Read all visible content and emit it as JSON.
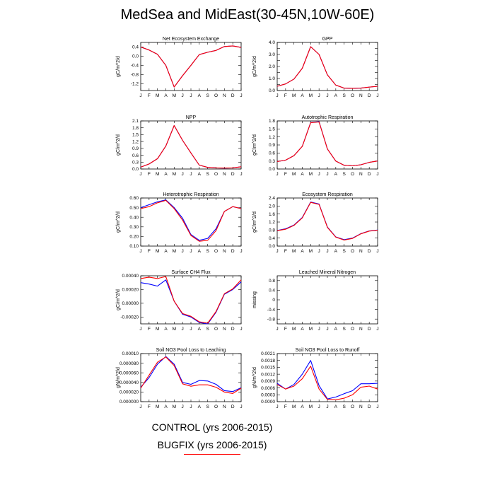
{
  "title": "MedSea and MidEast(30-45N,10W-60E)",
  "legend": [
    {
      "label": "CONTROL (yrs 2006-2015)",
      "color": "#0000ff"
    },
    {
      "label": "BUGFIX (yrs 2006-2015)",
      "color": "#ff0000"
    }
  ],
  "chart_data": [
    {
      "type": "line",
      "title": "Net Ecosystem Exchange",
      "ylabel": "gC/m^2/d",
      "categories": [
        "J",
        "F",
        "M",
        "A",
        "M",
        "J",
        "J",
        "A",
        "S",
        "O",
        "N",
        "D",
        "J"
      ],
      "ylim": [
        -1.5,
        0.6
      ],
      "yticks": [
        0.4,
        0.0,
        -0.4,
        -0.8,
        -1.2
      ],
      "yticklabels": [
        "0.4",
        "0.0",
        "-0.4",
        "-0.8",
        "-1.2"
      ],
      "series": [
        {
          "name": "CONTROL",
          "color": "#0000ff",
          "values": [
            0.4,
            0.27,
            0.08,
            -0.4,
            -1.35,
            -0.85,
            -0.4,
            0.07,
            0.17,
            0.25,
            0.42,
            0.45,
            0.38
          ]
        },
        {
          "name": "BUGFIX",
          "color": "#ff0000",
          "values": [
            0.4,
            0.27,
            0.08,
            -0.4,
            -1.35,
            -0.85,
            -0.4,
            0.07,
            0.17,
            0.25,
            0.42,
            0.45,
            0.38
          ]
        }
      ]
    },
    {
      "type": "line",
      "title": "GPP",
      "ylabel": "gC/m^2/d",
      "categories": [
        "J",
        "F",
        "M",
        "A",
        "M",
        "J",
        "J",
        "A",
        "S",
        "O",
        "N",
        "D",
        "J"
      ],
      "ylim": [
        0,
        4
      ],
      "yticks": [
        0,
        0.5,
        1,
        1.5,
        2,
        2.5,
        3,
        3.5,
        4
      ],
      "yticklabels": [
        "0.0",
        "",
        "1.0",
        "",
        "2.0",
        "",
        "3.0",
        "",
        "4.0"
      ],
      "series": [
        {
          "name": "CONTROL",
          "color": "#0000ff",
          "values": [
            0.35,
            0.55,
            0.95,
            1.85,
            3.65,
            3.0,
            1.3,
            0.45,
            0.2,
            0.18,
            0.2,
            0.28,
            0.35
          ]
        },
        {
          "name": "BUGFIX",
          "color": "#ff0000",
          "values": [
            0.35,
            0.55,
            0.95,
            1.85,
            3.65,
            3.0,
            1.3,
            0.45,
            0.2,
            0.18,
            0.2,
            0.28,
            0.35
          ]
        }
      ]
    },
    {
      "type": "line",
      "title": "NPP",
      "ylabel": "gC/m^2/d",
      "categories": [
        "J",
        "F",
        "M",
        "A",
        "M",
        "J",
        "J",
        "A",
        "S",
        "O",
        "N",
        "D",
        "J"
      ],
      "ylim": [
        0,
        2.1
      ],
      "yticks": [
        0,
        0.3,
        0.6,
        0.9,
        1.2,
        1.5,
        1.8,
        2.1
      ],
      "yticklabels": [
        "0.0",
        "0.3",
        "0.6",
        "0.9",
        "1.2",
        "1.5",
        "1.8",
        "2.1"
      ],
      "series": [
        {
          "name": "CONTROL",
          "color": "#0000ff",
          "values": [
            0.08,
            0.22,
            0.45,
            1.0,
            1.9,
            1.25,
            0.7,
            0.17,
            0.07,
            0.05,
            0.04,
            0.05,
            0.1
          ]
        },
        {
          "name": "BUGFIX",
          "color": "#ff0000",
          "values": [
            0.08,
            0.22,
            0.45,
            1.0,
            1.9,
            1.25,
            0.7,
            0.17,
            0.07,
            0.05,
            0.04,
            0.05,
            0.1
          ]
        }
      ]
    },
    {
      "type": "line",
      "title": "Autotrophic Respiration",
      "ylabel": "gC/m^2/d",
      "categories": [
        "J",
        "F",
        "M",
        "A",
        "M",
        "J",
        "J",
        "A",
        "S",
        "O",
        "N",
        "D",
        "J"
      ],
      "ylim": [
        0,
        1.8
      ],
      "yticks": [
        0,
        0.3,
        0.6,
        0.9,
        1.2,
        1.5,
        1.8
      ],
      "yticklabels": [
        "0.0",
        "0.3",
        "0.6",
        "0.9",
        "1.2",
        "1.5",
        "1.8"
      ],
      "series": [
        {
          "name": "CONTROL",
          "color": "#0000ff",
          "values": [
            0.28,
            0.33,
            0.5,
            0.85,
            1.74,
            1.77,
            0.75,
            0.3,
            0.14,
            0.12,
            0.16,
            0.25,
            0.3
          ]
        },
        {
          "name": "BUGFIX",
          "color": "#ff0000",
          "values": [
            0.28,
            0.33,
            0.5,
            0.85,
            1.73,
            1.76,
            0.75,
            0.3,
            0.14,
            0.12,
            0.16,
            0.25,
            0.3
          ]
        }
      ]
    },
    {
      "type": "line",
      "title": "Heterotrophic Respiration",
      "ylabel": "gC/m^2/d",
      "categories": [
        "J",
        "F",
        "M",
        "A",
        "M",
        "J",
        "J",
        "A",
        "S",
        "O",
        "N",
        "D",
        "J"
      ],
      "ylim": [
        0.1,
        0.6
      ],
      "yticks": [
        0.1,
        0.2,
        0.3,
        0.4,
        0.5,
        0.6
      ],
      "yticklabels": [
        "0.10",
        "0.20",
        "0.30",
        "0.40",
        "0.50",
        "0.60"
      ],
      "series": [
        {
          "name": "CONTROL",
          "color": "#0000ff",
          "values": [
            0.5,
            0.53,
            0.56,
            0.58,
            0.5,
            0.39,
            0.22,
            0.16,
            0.18,
            0.28,
            0.46,
            0.51,
            0.49
          ]
        },
        {
          "name": "BUGFIX",
          "color": "#ff0000",
          "values": [
            0.49,
            0.51,
            0.55,
            0.575,
            0.49,
            0.37,
            0.21,
            0.15,
            0.16,
            0.26,
            0.46,
            0.51,
            0.49
          ]
        }
      ]
    },
    {
      "type": "line",
      "title": "Ecosystem Respiration",
      "ylabel": "gC/m^2/d",
      "categories": [
        "J",
        "F",
        "M",
        "A",
        "M",
        "J",
        "J",
        "A",
        "S",
        "O",
        "N",
        "D",
        "J"
      ],
      "ylim": [
        0,
        2.4
      ],
      "yticks": [
        0,
        0.4,
        0.8,
        1.2,
        1.6,
        2.0,
        2.4
      ],
      "yticklabels": [
        "0.0",
        "0.4",
        "0.8",
        "1.2",
        "1.6",
        "2.0",
        "2.4"
      ],
      "series": [
        {
          "name": "CONTROL",
          "color": "#0000ff",
          "values": [
            0.78,
            0.86,
            1.05,
            1.43,
            2.2,
            2.1,
            0.95,
            0.46,
            0.32,
            0.4,
            0.62,
            0.76,
            0.8
          ]
        },
        {
          "name": "BUGFIX",
          "color": "#ff0000",
          "values": [
            0.77,
            0.84,
            1.03,
            1.41,
            2.18,
            2.08,
            0.93,
            0.45,
            0.3,
            0.38,
            0.61,
            0.75,
            0.79
          ]
        }
      ]
    },
    {
      "type": "line",
      "title": "Surface CH4 Flux",
      "ylabel": "gC/m^2/d",
      "categories": [
        "J",
        "F",
        "M",
        "A",
        "M",
        "J",
        "J",
        "A",
        "S",
        "O",
        "N",
        "D",
        "J"
      ],
      "ylim": [
        -0.0003,
        0.0004
      ],
      "yticks": [
        -0.0002,
        0.0,
        0.0002,
        0.0004
      ],
      "yticklabels": [
        "-0.00020",
        "0.00000",
        "0.00020",
        "0.00040"
      ],
      "series": [
        {
          "name": "CONTROL",
          "color": "#0000ff",
          "values": [
            0.0003,
            0.00028,
            0.00025,
            0.00034,
            3e-05,
            -0.00016,
            -0.0002,
            -0.00028,
            -0.0003,
            -0.00013,
            0.00013,
            0.0002,
            0.00031
          ]
        },
        {
          "name": "BUGFIX",
          "color": "#ff0000",
          "values": [
            0.00036,
            0.00038,
            0.00036,
            0.00039,
            3e-05,
            -0.00015,
            -0.00019,
            -0.00027,
            -0.00029,
            -0.00012,
            0.00014,
            0.00021,
            0.00034
          ]
        }
      ]
    },
    {
      "type": "line",
      "title": "Leached Mineral Nitrogen",
      "ylabel": "missing",
      "categories": [
        "J",
        "F",
        "M",
        "A",
        "M",
        "J",
        "J",
        "A",
        "S",
        "O",
        "N",
        "D",
        "J"
      ],
      "ylim": [
        -1,
        1
      ],
      "yticks": [
        -0.8,
        -0.4,
        0,
        0.4,
        0.8
      ],
      "yticklabels": [
        "-0.8",
        "-0.4",
        "0",
        "0.4",
        "0.8"
      ],
      "series": []
    },
    {
      "type": "line",
      "title": "Soil NO3 Pool Loss to Leaching",
      "ylabel": "gN/m^2/d",
      "categories": [
        "J",
        "F",
        "M",
        "A",
        "M",
        "J",
        "J",
        "A",
        "S",
        "O",
        "N",
        "D",
        "J"
      ],
      "ylim": [
        0,
        0.0001
      ],
      "yticks": [
        0,
        2e-05,
        4e-05,
        6e-05,
        8e-05,
        0.0001
      ],
      "yticklabels": [
        "0.000000",
        "0.000020",
        "0.000040",
        "0.000060",
        "0.000080",
        "0.00010"
      ],
      "series": [
        {
          "name": "CONTROL",
          "color": "#0000ff",
          "values": [
            3e-05,
            5e-05,
            7.8e-05,
            9.4e-05,
            7.8e-05,
            4e-05,
            3.6e-05,
            4.4e-05,
            4.3e-05,
            3.6e-05,
            2.3e-05,
            2.1e-05,
            2.9e-05
          ]
        },
        {
          "name": "BUGFIX",
          "color": "#ff0000",
          "values": [
            2.8e-05,
            5.5e-05,
            8.2e-05,
            9.3e-05,
            7.5e-05,
            3.7e-05,
            3.2e-05,
            3.5e-05,
            3.5e-05,
            3e-05,
            2e-05,
            1.7e-05,
            2.8e-05
          ]
        }
      ]
    },
    {
      "type": "line",
      "title": "Soil NO3 Pool Loss to Runoff",
      "ylabel": "gN/m^2/d",
      "categories": [
        "J",
        "F",
        "M",
        "A",
        "M",
        "J",
        "J",
        "A",
        "S",
        "O",
        "N",
        "D",
        "J"
      ],
      "ylim": [
        0,
        0.0021
      ],
      "yticks": [
        0,
        0.0003,
        0.0006,
        0.0009,
        0.0012,
        0.0015,
        0.0018,
        0.0021
      ],
      "yticklabels": [
        "0.0000",
        "0.0003",
        "0.0006",
        "0.0009",
        "0.0012",
        "0.0015",
        "0.0018",
        "0.0021"
      ],
      "series": [
        {
          "name": "CONTROL",
          "color": "#0000ff",
          "values": [
            0.0008,
            0.00055,
            0.00075,
            0.0012,
            0.0018,
            0.0007,
            0.00012,
            0.0002,
            0.00035,
            0.00048,
            0.00078,
            0.00078,
            0.0008
          ]
        },
        {
          "name": "BUGFIX",
          "color": "#ff0000",
          "values": [
            0.00075,
            0.00055,
            0.00068,
            0.001,
            0.00155,
            0.00055,
            0.0001,
            8e-05,
            0.00015,
            0.0003,
            0.00063,
            0.00068,
            0.00055
          ]
        }
      ]
    }
  ]
}
